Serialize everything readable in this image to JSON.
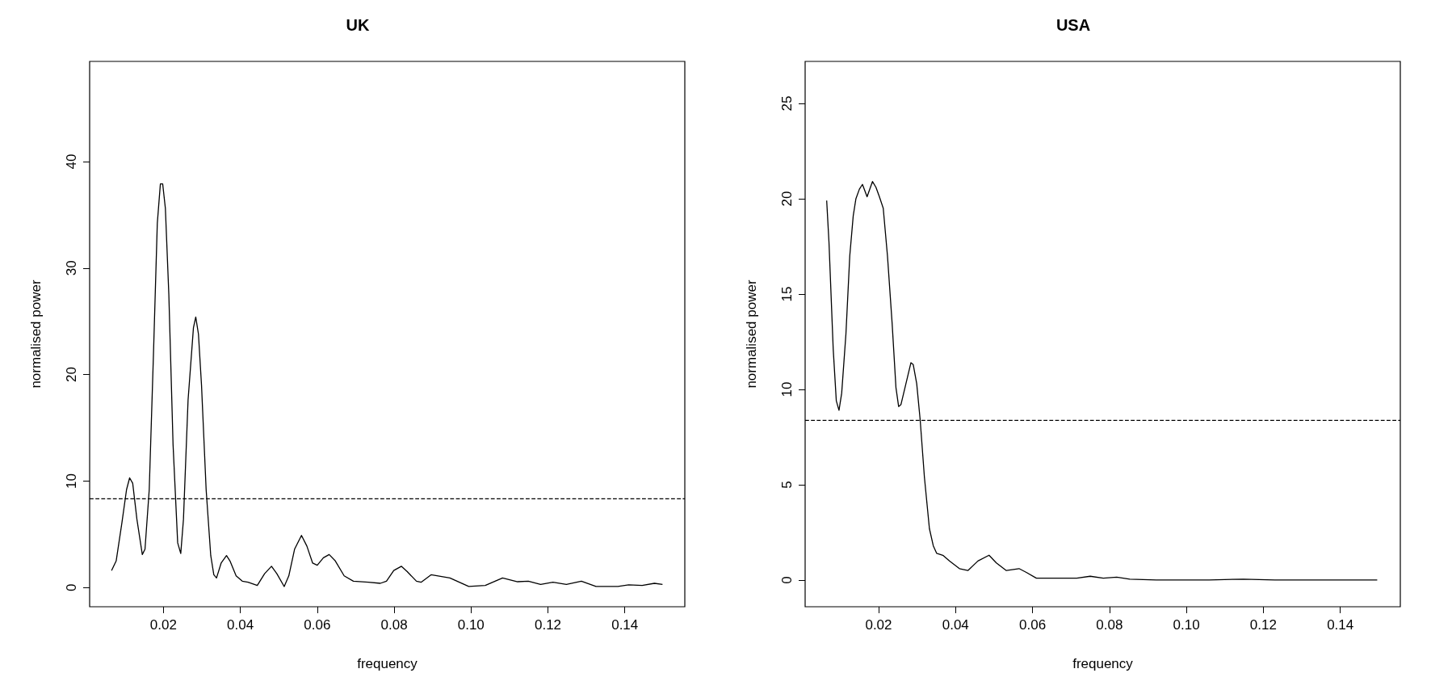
{
  "chart_data": [
    {
      "type": "line",
      "title": "UK",
      "xlabel": "frequency",
      "ylabel": "normalised power",
      "xlim": [
        0.0008,
        0.1556
      ],
      "ylim": [
        -1.8,
        49.4
      ],
      "xticks": [
        0.02,
        0.04,
        0.06,
        0.08,
        {
          "value": 0.1,
          "label": "0.10"
        },
        0.12,
        0.14
      ],
      "yticks": [
        0,
        10,
        20,
        30,
        40
      ],
      "ref_lines": [
        {
          "axis": "y",
          "value": 8.33,
          "color": "#000000",
          "line_style": "dashed"
        }
      ],
      "series": [
        {
          "color": "#000000",
          "x": [
            0.0065,
            0.0077,
            0.0092,
            0.0104,
            0.0112,
            0.012,
            0.0131,
            0.0145,
            0.0152,
            0.0163,
            0.0174,
            0.0184,
            0.0192,
            0.0198,
            0.0205,
            0.0214,
            0.0225,
            0.0237,
            0.0245,
            0.0252,
            0.0264,
            0.0278,
            0.0284,
            0.0291,
            0.0299,
            0.0311,
            0.0323,
            0.0331,
            0.0338,
            0.035,
            0.0364,
            0.0373,
            0.0389,
            0.0405,
            0.042,
            0.0444,
            0.0463,
            0.0481,
            0.0495,
            0.0514,
            0.0526,
            0.0541,
            0.0559,
            0.0573,
            0.0588,
            0.06,
            0.0616,
            0.0631,
            0.0647,
            0.067,
            0.0694,
            0.0733,
            0.0764,
            0.078,
            0.0799,
            0.0819,
            0.0834,
            0.0858,
            0.087,
            0.0896,
            0.0945,
            0.0994,
            0.1037,
            0.1082,
            0.1121,
            0.1149,
            0.1181,
            0.1213,
            0.1248,
            0.1287,
            0.1325,
            0.1382,
            0.141,
            0.1445,
            0.1477,
            0.1498
          ],
          "values": [
            1.6,
            2.5,
            6.1,
            9.2,
            10.3,
            9.8,
            6.4,
            3.1,
            3.6,
            9.2,
            21.9,
            34.2,
            37.9,
            37.9,
            35.6,
            27.5,
            13.4,
            4.2,
            3.2,
            6.4,
            17.6,
            24.4,
            25.4,
            23.8,
            19.0,
            9.2,
            3.0,
            1.2,
            0.9,
            2.3,
            3.0,
            2.5,
            1.1,
            0.6,
            0.5,
            0.2,
            1.3,
            2.0,
            1.3,
            0.1,
            1.1,
            3.6,
            4.9,
            3.9,
            2.3,
            2.1,
            2.8,
            3.1,
            2.5,
            1.1,
            0.6,
            0.5,
            0.4,
            0.6,
            1.6,
            2.0,
            1.5,
            0.6,
            0.5,
            1.2,
            0.9,
            0.1,
            0.2,
            0.9,
            0.55,
            0.6,
            0.3,
            0.5,
            0.3,
            0.6,
            0.1,
            0.1,
            0.25,
            0.2,
            0.4,
            0.3
          ]
        }
      ]
    },
    {
      "type": "line",
      "title": "USA",
      "xlabel": "frequency",
      "ylabel": "normalised power",
      "xlim": [
        0.0009,
        0.1556
      ],
      "ylim": [
        -1.4,
        27.2
      ],
      "xticks": [
        0.02,
        0.04,
        0.06,
        0.08,
        {
          "value": 0.1,
          "label": "0.10"
        },
        0.12,
        0.14
      ],
      "yticks": [
        0,
        5,
        10,
        15,
        20,
        25
      ],
      "ref_lines": [
        {
          "axis": "y",
          "value": 8.37,
          "color": "#000000",
          "line_style": "dashed"
        }
      ],
      "series": [
        {
          "color": "#000000",
          "x": [
            0.0065,
            0.0071,
            0.0082,
            0.009,
            0.0097,
            0.0104,
            0.0115,
            0.0125,
            0.0134,
            0.0141,
            0.015,
            0.0158,
            0.017,
            0.0184,
            0.0193,
            0.0202,
            0.0212,
            0.0223,
            0.0235,
            0.0245,
            0.0252,
            0.0258,
            0.0271,
            0.0284,
            0.029,
            0.0299,
            0.0308,
            0.0319,
            0.0332,
            0.0342,
            0.0351,
            0.0367,
            0.0384,
            0.041,
            0.0432,
            0.0458,
            0.0487,
            0.0506,
            0.0532,
            0.0565,
            0.0584,
            0.061,
            0.0654,
            0.068,
            0.0715,
            0.075,
            0.0784,
            0.0819,
            0.0853,
            0.0922,
            0.099,
            0.1059,
            0.1148,
            0.123,
            0.1333,
            0.1436,
            0.1496
          ],
          "values": [
            19.9,
            17.7,
            12.1,
            9.4,
            8.9,
            9.8,
            12.9,
            17.0,
            19.1,
            20.0,
            20.5,
            20.75,
            20.1,
            20.9,
            20.6,
            20.1,
            19.5,
            17.0,
            13.5,
            10.1,
            9.1,
            9.2,
            10.3,
            11.4,
            11.3,
            10.3,
            8.4,
            5.4,
            2.7,
            1.8,
            1.4,
            1.3,
            1.0,
            0.6,
            0.5,
            1.0,
            1.3,
            0.9,
            0.5,
            0.6,
            0.4,
            0.1,
            0.1,
            0.1,
            0.1,
            0.2,
            0.1,
            0.15,
            0.05,
            0.0,
            0.0,
            0.0,
            0.05,
            0.0,
            0.0,
            0.0,
            0.0
          ]
        }
      ]
    }
  ]
}
